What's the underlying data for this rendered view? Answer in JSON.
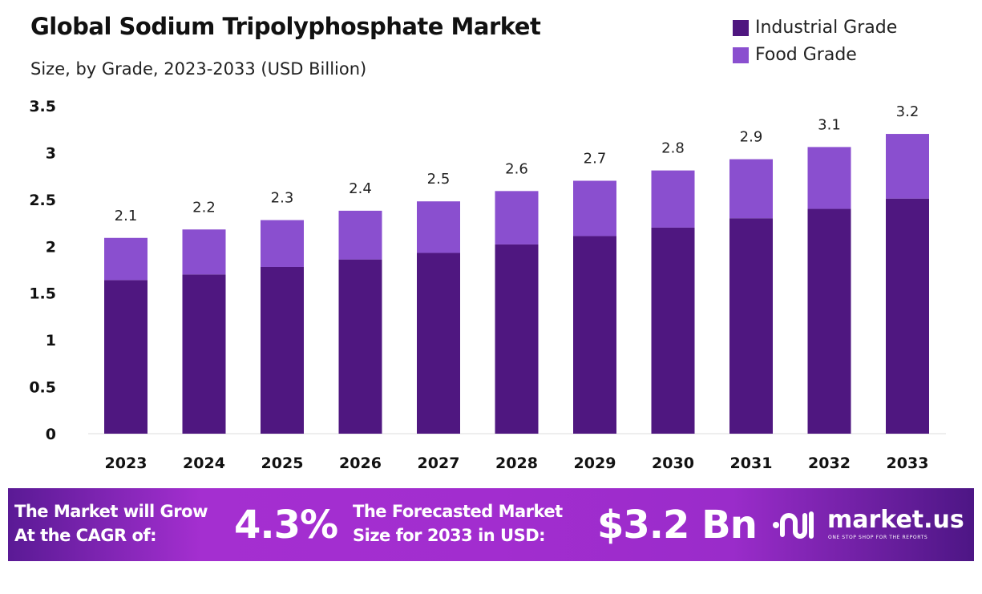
{
  "chart_data": {
    "type": "bar",
    "stacked": true,
    "title": "Global Sodium Tripolyphosphate Market",
    "subtitle": "Size, by Grade, 2023-2033 (USD Billion)",
    "categories": [
      "2023",
      "2024",
      "2025",
      "2026",
      "2027",
      "2028",
      "2029",
      "2030",
      "2031",
      "2032",
      "2033"
    ],
    "series": [
      {
        "name": "Industrial Grade",
        "color": "#4f1780",
        "values": [
          1.64,
          1.7,
          1.78,
          1.86,
          1.93,
          2.02,
          2.11,
          2.2,
          2.3,
          2.4,
          2.51
        ]
      },
      {
        "name": "Food Grade",
        "color": "#8a4fcf",
        "values": [
          0.45,
          0.48,
          0.5,
          0.52,
          0.55,
          0.57,
          0.59,
          0.61,
          0.63,
          0.66,
          0.69
        ]
      }
    ],
    "totals": [
      "2.1",
      "2.2",
      "2.3",
      "2.4",
      "2.5",
      "2.6",
      "2.7",
      "2.8",
      "2.9",
      "3.1",
      "3.2"
    ],
    "yticks": [
      "0",
      "0.5",
      "1",
      "1.5",
      "2",
      "2.5",
      "3",
      "3.5"
    ],
    "ylim": [
      0,
      3.5
    ],
    "grid": false,
    "legend": "top-right"
  },
  "banner": {
    "cagr_label_1": "The Market will Grow",
    "cagr_label_2": "At the CAGR of:",
    "cagr_value": "4.3%",
    "forecast_label_1": "The Forecasted Market",
    "forecast_label_2": "Size for 2033 in USD:",
    "forecast_value": "$3.2 Bn",
    "logo_text": "market.us",
    "logo_tagline": "ONE STOP SHOP FOR THE REPORTS"
  }
}
